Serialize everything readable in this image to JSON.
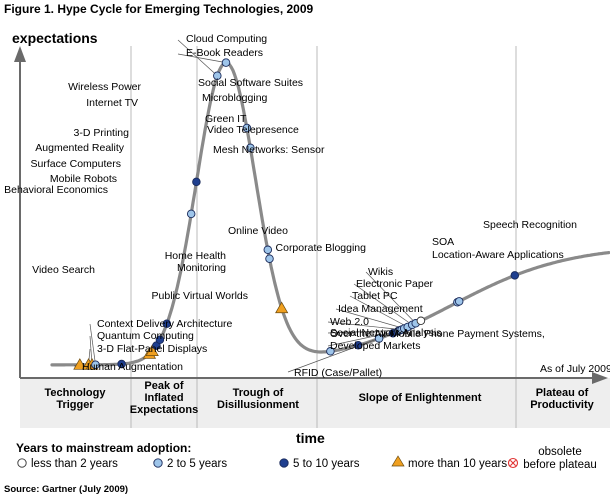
{
  "chart_data": {
    "type": "scatter",
    "title": "Figure 1. Hype Cycle for Emerging Technologies, 2009",
    "ylabel": "expectations",
    "xlabel": "time",
    "as_of": "As of July 2009",
    "source": "Source: Gartner (July 2009)",
    "phases": [
      {
        "id": "trigger",
        "lines": [
          "Technology",
          "Trigger"
        ]
      },
      {
        "id": "peak",
        "lines": [
          "Peak of",
          "Inflated",
          "Expectations"
        ]
      },
      {
        "id": "trough",
        "lines": [
          "Trough of",
          "Disillusionment"
        ]
      },
      {
        "id": "slope",
        "lines": [
          "Slope of Enlightenment"
        ]
      },
      {
        "id": "plateau",
        "lines": [
          "Plateau of",
          "Productivity"
        ]
      }
    ],
    "legend": {
      "title": "Years to mainstream adoption:",
      "items": [
        {
          "key": "lt2",
          "label": "less than 2 years",
          "color": "#ffffff"
        },
        {
          "key": "2to5",
          "label": "2 to 5 years",
          "color": "#9ec5ea"
        },
        {
          "key": "5to10",
          "label": "5 to 10 years",
          "color": "#1f3f8f"
        },
        {
          "key": "gt10",
          "label": "more than 10 years",
          "color": "#f0a020"
        },
        {
          "key": "obs",
          "label": "obsolete before plateau",
          "label_lines": [
            "obsolete",
            "before plateau"
          ],
          "color": "#e03030"
        }
      ]
    },
    "curve_color": "#8a8a8a",
    "technologies": [
      {
        "name": "Human Augmentation",
        "cat": "gt10",
        "t": 0.08
      },
      {
        "name": "3-D Flat-Panel Displays",
        "cat": "gt10",
        "t": 0.105
      },
      {
        "name": "Quantum Computing",
        "cat": "gt10",
        "t": 0.115
      },
      {
        "name": "Context Delivery Architecture",
        "cat": "2to5",
        "t": 0.125
      },
      {
        "name": "Video Search",
        "cat": "5to10",
        "t": 0.2
      },
      {
        "name": "Behavioral Economics",
        "cat": "gt10",
        "t": 0.28
      },
      {
        "name": "Mobile Robots",
        "cat": "gt10",
        "t": 0.288
      },
      {
        "name": "Surface Computers",
        "cat": "5to10",
        "t": 0.3
      },
      {
        "name": "Augmented Reality",
        "cat": "5to10",
        "t": 0.31
      },
      {
        "name": "3-D Printing",
        "cat": "5to10",
        "t": 0.33
      },
      {
        "name": "Internet TV",
        "cat": "2to5",
        "t": 0.4
      },
      {
        "name": "Wireless Power",
        "cat": "5to10",
        "t": 0.415
      },
      {
        "name": "Cloud Computing",
        "cat": "2to5",
        "t": 0.475
      },
      {
        "name": "E-Book Readers",
        "cat": "2to5",
        "t": 0.5
      },
      {
        "name": "Social Software Suites",
        "cat": "2to5",
        "t": 0.56
      },
      {
        "name": "Microblogging",
        "cat": "2to5",
        "t": 0.57
      },
      {
        "name": "Green IT",
        "cat": "2to5",
        "t": 0.62
      },
      {
        "name": "Video Telepresence",
        "cat": "2to5",
        "t": 0.625
      },
      {
        "name": "Mesh Networks: Sensor",
        "cat": "gt10",
        "t": 0.66
      },
      {
        "name": "Online Video",
        "cat": "2to5",
        "t": 0.8
      },
      {
        "name": "Home Health Monitoring",
        "cat": "5to10",
        "label_lines": [
          "Home Health",
          "Monitoring"
        ],
        "t": 0.88
      },
      {
        "name": "Public Virtual Worlds",
        "cat": "2to5",
        "t": 0.94
      },
      {
        "name": "RFID (Case/Pallet)",
        "cat": "5to10",
        "t": 0.98
      },
      {
        "name": "Over-the-Air Mobile Phone Payment Systems, Developed Markets",
        "cat": "2to5",
        "label_lines": [
          "Over-the-Air Mobile Phone Payment Systems,",
          "Developed Markets"
        ],
        "t": 0.995
      },
      {
        "name": "Social Network Analysis",
        "cat": "2to5",
        "t": 1.0
      },
      {
        "name": "Web 2.0",
        "cat": "2to5",
        "t": 1.005
      },
      {
        "name": "Idea Management",
        "cat": "2to5",
        "t": 1.012
      },
      {
        "name": "Tablet PC",
        "cat": "2to5",
        "t": 1.022
      },
      {
        "name": "Electronic Paper",
        "cat": "2to5",
        "t": 1.035
      },
      {
        "name": "Wikis",
        "cat": "2to5",
        "t": 1.045
      },
      {
        "name": "Corporate Blogging",
        "cat": "lt2",
        "t": 1.06
      },
      {
        "name": "SOA",
        "cat": "2to5",
        "t": 1.165
      },
      {
        "name": "Location-Aware Applications",
        "cat": "2to5",
        "t": 1.17
      },
      {
        "name": "Speech Recognition",
        "cat": "5to10",
        "t": 1.33
      }
    ]
  }
}
